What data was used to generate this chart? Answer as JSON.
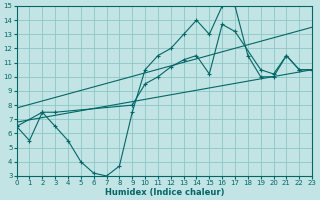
{
  "bg_color": "#c2e4e4",
  "grid_color": "#8cc8c8",
  "line_color": "#006868",
  "x_min": 0,
  "x_max": 23,
  "y_min": 3,
  "y_max": 15,
  "xlabel": "Humidex (Indice chaleur)",
  "zigzag_x": [
    0,
    1,
    2,
    3,
    4,
    5,
    6,
    7,
    8,
    9,
    10,
    11,
    12,
    13,
    14,
    15,
    16,
    17,
    18,
    19,
    20,
    21,
    22,
    23
  ],
  "zigzag_y": [
    6.5,
    5.5,
    7.5,
    6.5,
    5.5,
    4.0,
    3.2,
    3.0,
    3.7,
    7.5,
    10.5,
    11.5,
    12.0,
    13.0,
    14.0,
    13.0,
    15.0,
    15.0,
    11.5,
    10.0,
    10.0,
    11.5,
    10.5,
    10.5
  ],
  "upper_x": [
    0,
    2,
    3,
    9,
    10,
    11,
    12,
    13,
    14,
    15,
    16,
    17,
    19,
    20,
    21,
    22,
    23
  ],
  "upper_y": [
    6.5,
    7.5,
    7.5,
    8.0,
    9.5,
    10.0,
    10.7,
    11.2,
    11.5,
    10.2,
    13.7,
    13.2,
    10.5,
    10.2,
    11.5,
    10.5,
    10.5
  ],
  "trend1_x": [
    0,
    23
  ],
  "trend1_y": [
    6.8,
    10.5
  ],
  "trend2_x": [
    0,
    23
  ],
  "trend2_y": [
    7.8,
    13.5
  ]
}
